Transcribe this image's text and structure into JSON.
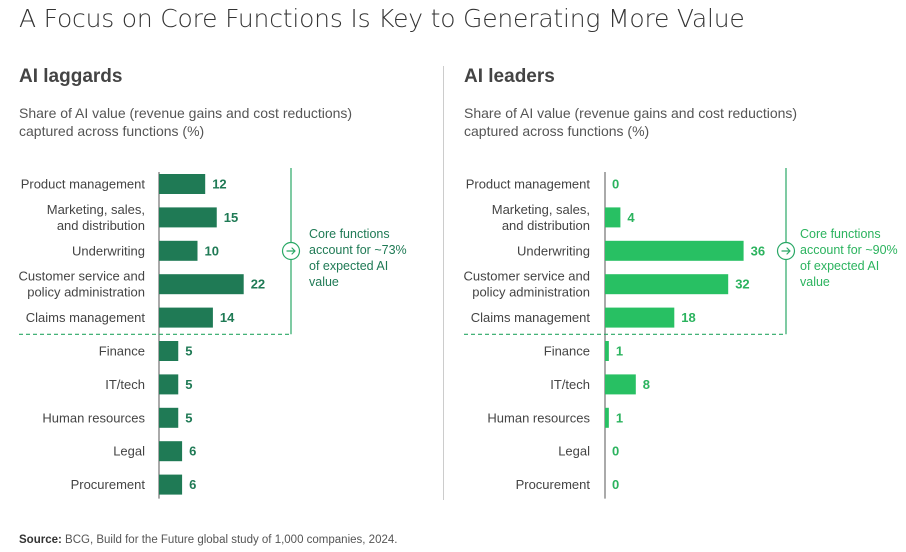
{
  "title": "A Focus on Core Functions Is Key to Generating More Value",
  "source": {
    "label": "Source:",
    "text": "BCG, Build for the Future global study of 1,000 companies, 2024."
  },
  "colors": {
    "laggard_bar": "#1f7a55",
    "leader_bar": "#28c063",
    "laggard_text": "#1f7a55",
    "leader_text": "#2bb35e",
    "divider": "#2aa866"
  },
  "icons": {
    "callout": "arrow-right-circle-icon"
  },
  "panels": [
    {
      "key": "laggards",
      "title": "AI laggards",
      "subtitle": "Share of AI value (revenue gains and cost reductions) captured across functions (%)",
      "callout": "Core functions account for ~73% of expected AI value"
    },
    {
      "key": "leaders",
      "title": "AI leaders",
      "subtitle": "Share of AI value (revenue gains and cost reductions) captured across functions (%)",
      "callout": "Core functions account for ~90% of expected AI value"
    }
  ],
  "chart_data": [
    {
      "type": "bar",
      "orientation": "horizontal",
      "title": "AI laggards",
      "subtitle": "Share of AI value (revenue gains and cost reductions) captured across functions (%)",
      "categories": [
        "Product management",
        "Marketing, sales, and distribution",
        "Underwriting",
        "Customer service and policy administration",
        "Claims management",
        "Finance",
        "IT/tech",
        "Human resources",
        "Legal",
        "Procurement"
      ],
      "category_lines": [
        [
          "Product management"
        ],
        [
          "Marketing, sales,",
          "and distribution"
        ],
        [
          "Underwriting"
        ],
        [
          "Customer service and",
          "policy administration"
        ],
        [
          "Claims management"
        ],
        [
          "Finance"
        ],
        [
          "IT/tech"
        ],
        [
          "Human resources"
        ],
        [
          "Legal"
        ],
        [
          "Procurement"
        ]
      ],
      "values": [
        12,
        15,
        10,
        22,
        14,
        5,
        5,
        5,
        6,
        6
      ],
      "core_functions_count": 5,
      "annotation": "Core functions account for ~73% of expected AI value",
      "xlim": [
        0,
        36
      ],
      "grid": false,
      "data_labels": true
    },
    {
      "type": "bar",
      "orientation": "horizontal",
      "title": "AI leaders",
      "subtitle": "Share of AI value (revenue gains and cost reductions) captured across functions (%)",
      "categories": [
        "Product management",
        "Marketing, sales, and distribution",
        "Underwriting",
        "Customer service and policy administration",
        "Claims management",
        "Finance",
        "IT/tech",
        "Human resources",
        "Legal",
        "Procurement"
      ],
      "category_lines": [
        [
          "Product management"
        ],
        [
          "Marketing, sales,",
          "and distribution"
        ],
        [
          "Underwriting"
        ],
        [
          "Customer service and",
          "policy administration"
        ],
        [
          "Claims management"
        ],
        [
          "Finance"
        ],
        [
          "IT/tech"
        ],
        [
          "Human resources"
        ],
        [
          "Legal"
        ],
        [
          "Procurement"
        ]
      ],
      "values": [
        0,
        4,
        36,
        32,
        18,
        1,
        8,
        1,
        0,
        0
      ],
      "core_functions_count": 5,
      "annotation": "Core functions account for ~90% of expected AI value",
      "xlim": [
        0,
        36
      ],
      "grid": false,
      "data_labels": true
    }
  ]
}
